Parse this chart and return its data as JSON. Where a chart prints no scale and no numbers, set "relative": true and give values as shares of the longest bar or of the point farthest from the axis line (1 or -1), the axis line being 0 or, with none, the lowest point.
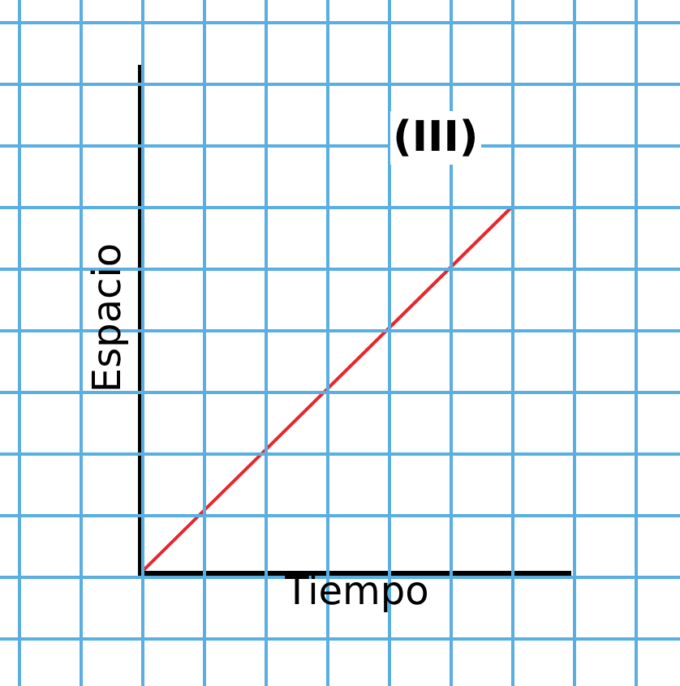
{
  "chart_data": {
    "type": "line",
    "title": "(III)",
    "xlabel": "Tiempo",
    "ylabel": "Espacio",
    "relative": true,
    "grid": true,
    "marker": "none",
    "line_style": "solid",
    "categories": [
      null,
      null
    ],
    "series": [
      {
        "color": "#e8262c",
        "values": [
          0,
          1
        ]
      }
    ]
  }
}
